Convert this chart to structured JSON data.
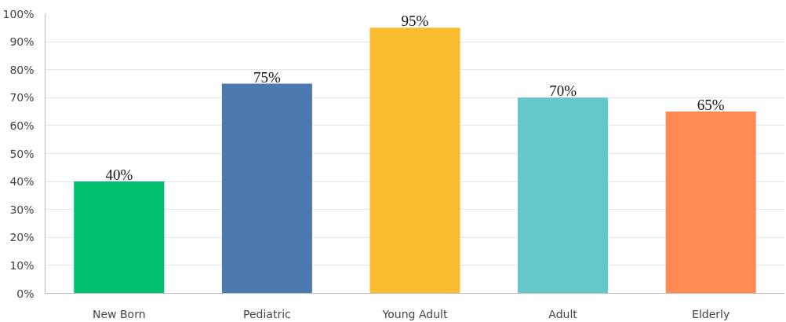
{
  "chart_data": {
    "type": "bar",
    "categories": [
      "New Born",
      "Pediatric",
      "Young Adult",
      "Adult",
      "Elderly"
    ],
    "values": [
      40,
      75,
      95,
      70,
      65
    ],
    "colors": [
      "#00bf6f",
      "#4a7ab0",
      "#fbbc2f",
      "#66c7cb",
      "#ff8b52"
    ],
    "value_labels": [
      "40%",
      "75%",
      "95%",
      "70%",
      "65%"
    ],
    "ylim": [
      0,
      100
    ],
    "yticks": [
      {
        "value": 0,
        "label": "0%"
      },
      {
        "value": 10,
        "label": "10%"
      },
      {
        "value": 20,
        "label": "20%"
      },
      {
        "value": 30,
        "label": "30%"
      },
      {
        "value": 40,
        "label": "40%"
      },
      {
        "value": 50,
        "label": "50%"
      },
      {
        "value": 60,
        "label": "60%"
      },
      {
        "value": 70,
        "label": "70%"
      },
      {
        "value": 80,
        "label": "80%"
      },
      {
        "value": 90,
        "label": "90%"
      },
      {
        "value": 100,
        "label": "100%"
      }
    ],
    "grid": "y"
  }
}
